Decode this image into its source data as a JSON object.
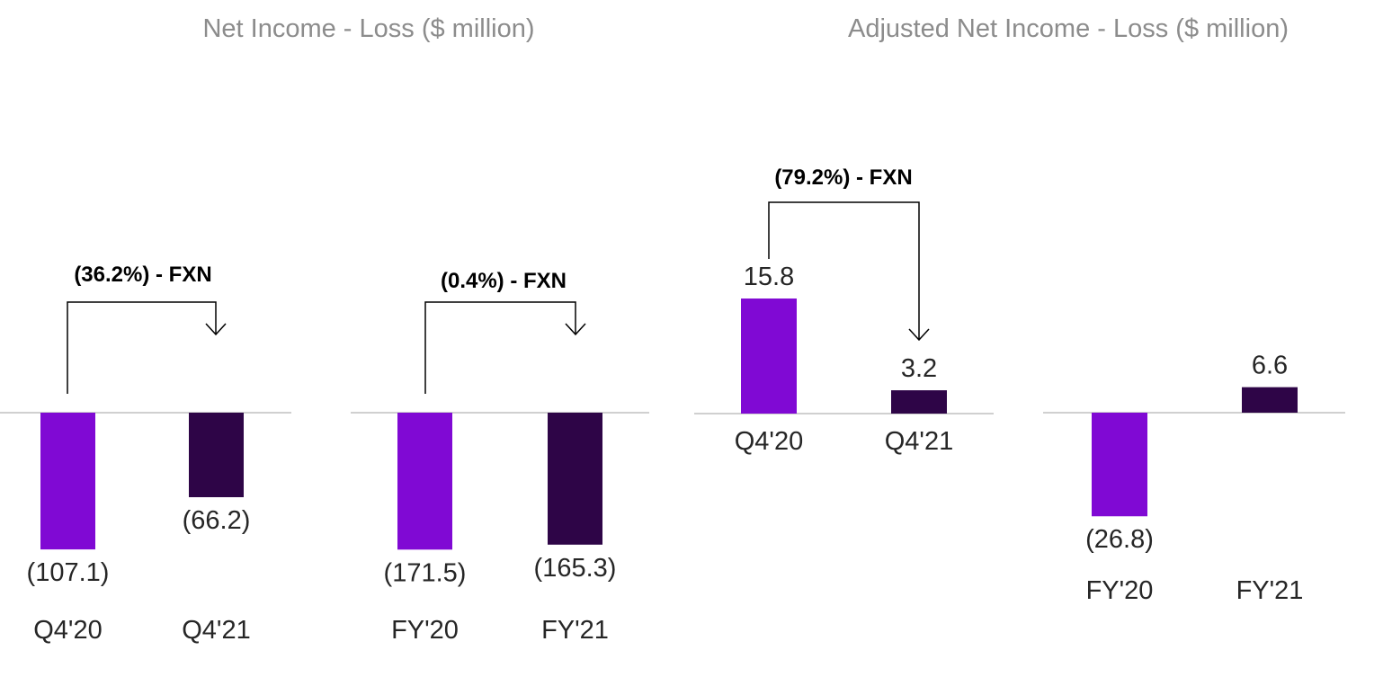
{
  "colors": {
    "purple": "#8009d4",
    "dark_purple": "#2e0547",
    "baseline": "#d0d0d0",
    "title": "#8c8c8c",
    "label": "#262626",
    "annotation": "#000000"
  },
  "titles": {
    "left": "Net Income - Loss ($ million)",
    "right": "Adjusted Net Income - Loss ($ million)"
  },
  "chart_data": [
    {
      "type": "bar",
      "group": "Net Income - Loss ($ million)",
      "title": "Net Income - Loss ($ million)",
      "categories": [
        "Q4'20",
        "Q4'21"
      ],
      "values": [
        -107.1,
        -66.2
      ],
      "value_labels": [
        "(107.1)",
        "(66.2)"
      ],
      "bar_colors": [
        "#8009d4",
        "#2e0547"
      ],
      "annotation": "(36.2%) - FXN"
    },
    {
      "type": "bar",
      "group": "Net Income - Loss ($ million)",
      "title": "",
      "categories": [
        "FY'20",
        "FY'21"
      ],
      "values": [
        -171.5,
        -165.3
      ],
      "value_labels": [
        "(171.5)",
        "(165.3)"
      ],
      "bar_colors": [
        "#8009d4",
        "#2e0547"
      ],
      "annotation": "(0.4%) - FXN"
    },
    {
      "type": "bar",
      "group": "Adjusted Net Income - Loss ($ million)",
      "title": "Adjusted Net Income - Loss ($ million)",
      "categories": [
        "Q4'20",
        "Q4'21"
      ],
      "values": [
        15.8,
        3.2
      ],
      "value_labels": [
        "15.8",
        "3.2"
      ],
      "bar_colors": [
        "#8009d4",
        "#2e0547"
      ],
      "annotation": "(79.2%) - FXN"
    },
    {
      "type": "bar",
      "group": "Adjusted Net Income - Loss ($ million)",
      "title": "",
      "categories": [
        "FY'20",
        "FY'21"
      ],
      "values": [
        -26.8,
        6.6
      ],
      "value_labels": [
        "(26.8)",
        "6.6"
      ],
      "bar_colors": [
        "#8009d4",
        "#2e0547"
      ],
      "annotation": ""
    }
  ]
}
